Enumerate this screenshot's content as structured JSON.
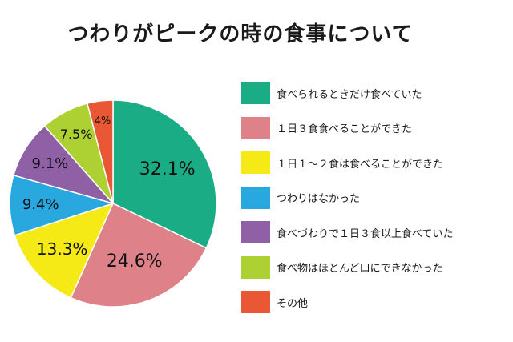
{
  "chart_data": {
    "type": "pie",
    "title": "つわりがピークの時の食事について",
    "slices": [
      {
        "label": "食べられるときだけ食べていた",
        "value": 32.1,
        "display": "32.1%",
        "color": "#1aac84"
      },
      {
        "label": "１日３食食べることができた",
        "value": 24.6,
        "display": "24.6%",
        "color": "#de8189"
      },
      {
        "label": "１日１～２食は食べることができた",
        "value": 13.3,
        "display": "13.3%",
        "color": "#f6ea16"
      },
      {
        "label": "つわりはなかった",
        "value": 9.4,
        "display": "9.4%",
        "color": "#29a7df"
      },
      {
        "label": "食べづわりで１日３食以上食べていた",
        "value": 9.1,
        "display": "9.1%",
        "color": "#8f60a6"
      },
      {
        "label": "食べ物はほとんど口にできなかった",
        "value": 7.5,
        "display": "7.5%",
        "color": "#add033"
      },
      {
        "label": "その他",
        "value": 4,
        "display": "4%",
        "color": "#e95734"
      }
    ],
    "legend_position": "right",
    "start_angle": "12 o'clock",
    "direction": "clockwise"
  }
}
